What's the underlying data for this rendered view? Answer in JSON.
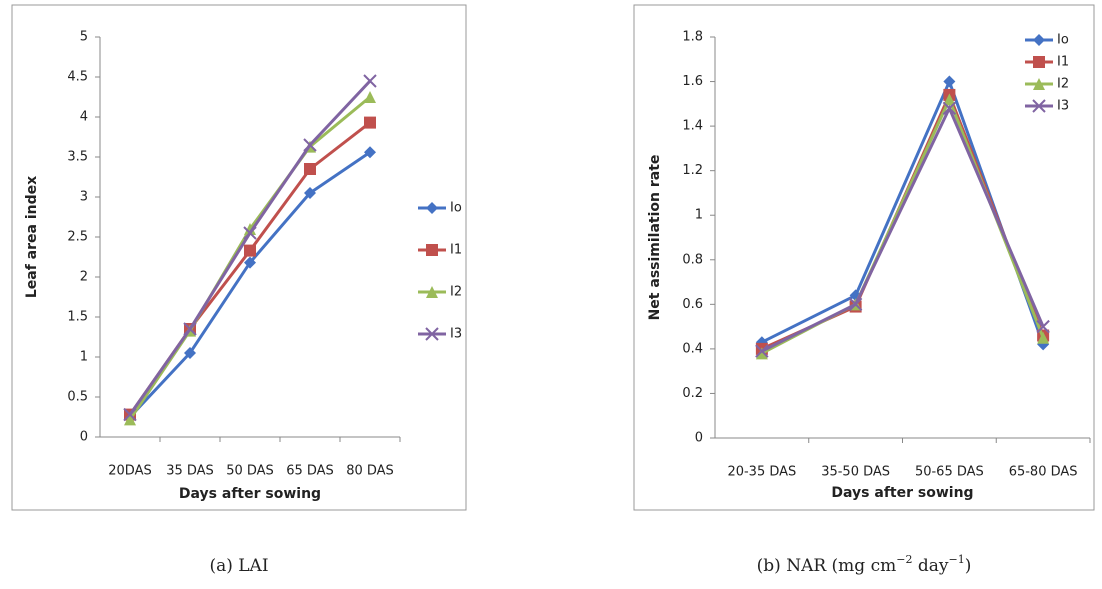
{
  "chart_data": [
    {
      "type": "line",
      "caption": [
        "(a) LAI"
      ],
      "x_label": "Days after sowing",
      "y_label": "Leaf area index",
      "categories": [
        "20DAS",
        "35 DAS",
        "50 DAS",
        "65 DAS",
        "80 DAS"
      ],
      "ylim": [
        0,
        5
      ],
      "yticks": [
        0,
        0.5,
        1,
        1.5,
        2,
        2.5,
        3,
        3.5,
        4,
        4.5,
        5
      ],
      "legend": "right",
      "series": [
        {
          "name": "Io",
          "color": "#4472c4",
          "marker": "diamond",
          "values": [
            0.25,
            1.05,
            2.18,
            3.05,
            3.56
          ]
        },
        {
          "name": "I1",
          "color": "#c0504d",
          "marker": "square",
          "values": [
            0.28,
            1.35,
            2.33,
            3.35,
            3.93
          ]
        },
        {
          "name": "I2",
          "color": "#9bbb59",
          "marker": "triangle",
          "values": [
            0.22,
            1.33,
            2.6,
            3.63,
            4.25
          ]
        },
        {
          "name": "I3",
          "color": "#8064a2",
          "marker": "x",
          "values": [
            0.28,
            1.35,
            2.55,
            3.65,
            4.45
          ]
        }
      ]
    },
    {
      "type": "line",
      "caption": [
        "(b) NAR (mg cm",
        "−2",
        " day",
        "−1",
        ")"
      ],
      "x_label": "Days after sowing",
      "y_label": "Net assimilation  rate",
      "categories": [
        "20-35 DAS",
        "35-50 DAS",
        "50-65 DAS",
        "65-80 DAS"
      ],
      "ylim": [
        0,
        1.8
      ],
      "yticks": [
        0,
        0.2,
        0.4,
        0.6,
        0.8,
        1,
        1.2,
        1.4,
        1.6,
        1.8
      ],
      "legend": "top-right",
      "series": [
        {
          "name": "Io",
          "color": "#4472c4",
          "marker": "diamond",
          "values": [
            0.43,
            0.64,
            1.6,
            0.42
          ]
        },
        {
          "name": "I1",
          "color": "#c0504d",
          "marker": "square",
          "values": [
            0.4,
            0.59,
            1.54,
            0.46
          ]
        },
        {
          "name": "I2",
          "color": "#9bbb59",
          "marker": "triangle",
          "values": [
            0.38,
            0.6,
            1.52,
            0.45
          ]
        },
        {
          "name": "I3",
          "color": "#8064a2",
          "marker": "x",
          "values": [
            0.39,
            0.6,
            1.48,
            0.5
          ]
        }
      ]
    }
  ]
}
